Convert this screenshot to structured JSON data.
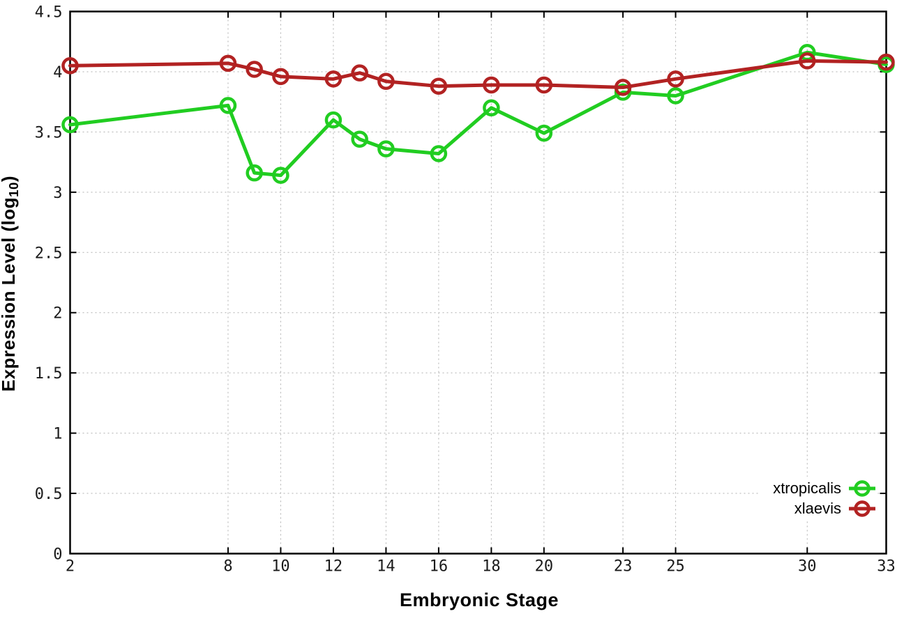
{
  "chart_data": {
    "type": "line",
    "title": "",
    "xlabel": "Embryonic Stage",
    "ylabel": "Expression Level (log10)",
    "ylabel_parts": {
      "prefix": "Expression Level (log",
      "sub": "10",
      "suffix": ")"
    },
    "x": [
      2,
      8,
      9,
      10,
      12,
      13,
      14,
      16,
      18,
      20,
      23,
      25,
      30,
      33
    ],
    "series": [
      {
        "name": "xtropicalis",
        "color": "#21cd21",
        "marker": "open-circle",
        "values": [
          3.56,
          3.72,
          3.16,
          3.14,
          3.6,
          3.44,
          3.36,
          3.32,
          3.7,
          3.49,
          3.83,
          3.8,
          4.16,
          4.06
        ]
      },
      {
        "name": "xlaevis",
        "color": "#b22222",
        "marker": "open-circle",
        "values": [
          4.05,
          4.07,
          4.02,
          3.96,
          3.94,
          3.99,
          3.92,
          3.88,
          3.89,
          3.89,
          3.87,
          3.94,
          4.09,
          4.08
        ]
      }
    ],
    "xticks": [
      2,
      8,
      10,
      12,
      14,
      16,
      18,
      20,
      23,
      25,
      30,
      33
    ],
    "yticks": [
      0,
      0.5,
      1,
      1.5,
      2,
      2.5,
      3,
      3.5,
      4,
      4.5
    ],
    "xlim": [
      2,
      33
    ],
    "ylim": [
      0,
      4.5
    ],
    "grid": true,
    "grid_style": "dotted",
    "legend_position": "inside-bottom-right",
    "colors": {
      "axis": "#000000",
      "grid": "#b0b0b0",
      "tick_label": "#1a1a1a"
    }
  }
}
